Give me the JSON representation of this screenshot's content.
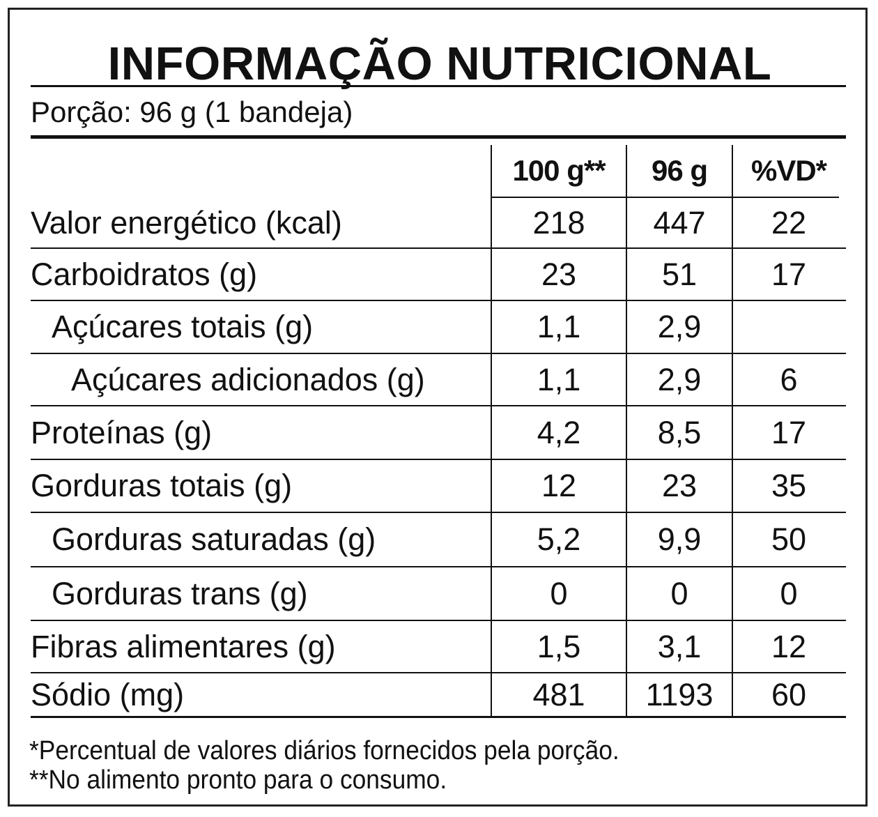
{
  "title": "INFORMAÇÃO NUTRICIONAL",
  "serving": "Porção: 96 g (1 bandeja)",
  "columns": [
    "100 g**",
    "96 g",
    "%VD*"
  ],
  "rows": [
    {
      "name": "Valor energético (kcal)",
      "indent": 0,
      "per100g": "218",
      "perServing": "447",
      "vd": "22"
    },
    {
      "name": "Carboidratos (g)",
      "indent": 0,
      "per100g": "23",
      "perServing": "51",
      "vd": "17"
    },
    {
      "name": "Açúcares totais (g)",
      "indent": 1,
      "per100g": "1,1",
      "perServing": "2,9",
      "vd": ""
    },
    {
      "name": "Açúcares adicionados (g)",
      "indent": 2,
      "per100g": "1,1",
      "perServing": "2,9",
      "vd": "6"
    },
    {
      "name": "Proteínas (g)",
      "indent": 0,
      "per100g": "4,2",
      "perServing": "8,5",
      "vd": "17"
    },
    {
      "name": "Gorduras totais (g)",
      "indent": 0,
      "per100g": "12",
      "perServing": "23",
      "vd": "35"
    },
    {
      "name": "Gorduras saturadas (g)",
      "indent": 1,
      "per100g": "5,2",
      "perServing": "9,9",
      "vd": "50"
    },
    {
      "name": "Gorduras trans (g)",
      "indent": 1,
      "per100g": "0",
      "perServing": "0",
      "vd": "0"
    },
    {
      "name": "Fibras alimentares (g)",
      "indent": 0,
      "per100g": "1,5",
      "perServing": "3,1",
      "vd": "12"
    },
    {
      "name": "Sódio (mg)",
      "indent": 0,
      "per100g": "481",
      "perServing": "1193",
      "vd": "60"
    }
  ],
  "footnotes": [
    "*Percentual de valores diários fornecidos pela porção.",
    "**No alimento pronto para o consumo."
  ]
}
